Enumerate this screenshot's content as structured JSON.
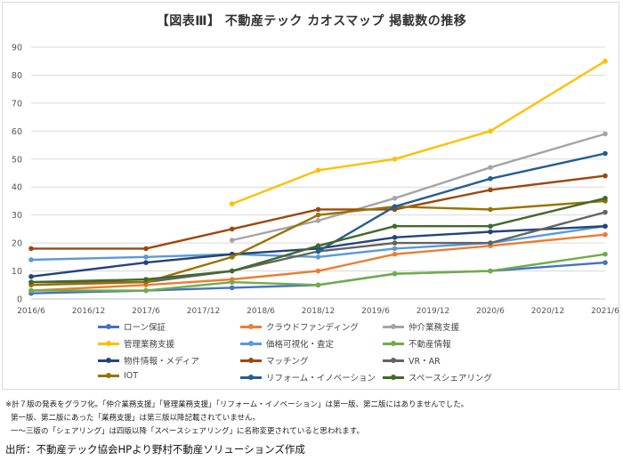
{
  "chart_data": {
    "type": "line",
    "title": "【図表Ⅲ】 不動産テック カオスマップ 掲載数の推移",
    "x": [
      "2016/6",
      "2016/12",
      "2017/6",
      "2017/12",
      "2018/6",
      "2018/12",
      "2019/6",
      "2019/12",
      "2020/6",
      "2020/12",
      "2021/6"
    ],
    "ylim": [
      0,
      90
    ],
    "yticks": [
      0,
      10,
      20,
      30,
      40,
      50,
      60,
      70,
      80,
      90
    ],
    "grid": true,
    "legend_position": "bottom",
    "series": [
      {
        "name": "ローン保証",
        "color": "#4472c4",
        "points": [
          [
            "2016/6",
            2
          ],
          [
            "2017/6",
            3
          ],
          [
            "2018/3",
            4
          ],
          [
            "2018/12",
            5
          ],
          [
            "2019/8",
            9
          ],
          [
            "2020/6",
            10
          ],
          [
            "2021/6",
            13
          ]
        ]
      },
      {
        "name": "クラウドファンディング",
        "color": "#ed7d31",
        "points": [
          [
            "2016/6",
            3
          ],
          [
            "2017/6",
            5
          ],
          [
            "2018/3",
            7
          ],
          [
            "2018/12",
            10
          ],
          [
            "2019/8",
            16
          ],
          [
            "2020/6",
            19
          ],
          [
            "2021/6",
            23
          ]
        ]
      },
      {
        "name": "仲介業務支援",
        "color": "#a5a5a5",
        "points": [
          [
            "2018/3",
            21
          ],
          [
            "2018/12",
            28
          ],
          [
            "2019/8",
            36
          ],
          [
            "2020/6",
            47
          ],
          [
            "2021/6",
            59
          ]
        ]
      },
      {
        "name": "管理業務支援",
        "color": "#ffc000",
        "points": [
          [
            "2018/3",
            34
          ],
          [
            "2018/12",
            46
          ],
          [
            "2019/8",
            50
          ],
          [
            "2020/6",
            60
          ],
          [
            "2021/6",
            85
          ]
        ]
      },
      {
        "name": "価格可視化・査定",
        "color": "#5b9bd5",
        "points": [
          [
            "2016/6",
            14
          ],
          [
            "2017/6",
            15
          ],
          [
            "2018/3",
            16
          ],
          [
            "2018/12",
            15
          ],
          [
            "2019/8",
            18
          ],
          [
            "2020/6",
            20
          ],
          [
            "2021/6",
            26
          ]
        ]
      },
      {
        "name": "不動産情報",
        "color": "#70ad47",
        "points": [
          [
            "2016/6",
            3
          ],
          [
            "2017/6",
            3
          ],
          [
            "2018/3",
            6
          ],
          [
            "2018/12",
            5
          ],
          [
            "2019/8",
            9
          ],
          [
            "2020/6",
            10
          ],
          [
            "2021/6",
            16
          ]
        ]
      },
      {
        "name": "物件情報・メディア",
        "color": "#264478",
        "points": [
          [
            "2016/6",
            8
          ],
          [
            "2017/6",
            13
          ],
          [
            "2018/3",
            16
          ],
          [
            "2018/12",
            18
          ],
          [
            "2019/8",
            22
          ],
          [
            "2020/6",
            24
          ],
          [
            "2021/6",
            26
          ]
        ]
      },
      {
        "name": "マッチング",
        "color": "#9e480e",
        "points": [
          [
            "2016/6",
            18
          ],
          [
            "2017/6",
            18
          ],
          [
            "2018/3",
            25
          ],
          [
            "2018/12",
            32
          ],
          [
            "2019/8",
            32
          ],
          [
            "2020/6",
            39
          ],
          [
            "2021/6",
            44
          ]
        ]
      },
      {
        "name": "VR・AR",
        "color": "#636363",
        "points": [
          [
            "2016/6",
            6
          ],
          [
            "2017/6",
            6
          ],
          [
            "2018/3",
            10
          ],
          [
            "2018/12",
            17
          ],
          [
            "2019/8",
            20
          ],
          [
            "2020/6",
            20
          ],
          [
            "2021/6",
            31
          ]
        ]
      },
      {
        "name": "IOT",
        "color": "#997300",
        "points": [
          [
            "2016/6",
            5
          ],
          [
            "2017/6",
            6
          ],
          [
            "2018/3",
            15
          ],
          [
            "2018/12",
            30
          ],
          [
            "2019/8",
            33
          ],
          [
            "2020/6",
            32
          ],
          [
            "2021/6",
            35
          ]
        ]
      },
      {
        "name": "リフォーム・イノベーション",
        "color": "#255e91",
        "points": [
          [
            "2018/12",
            17
          ],
          [
            "2019/8",
            33
          ],
          [
            "2020/6",
            43
          ],
          [
            "2021/6",
            52
          ]
        ]
      },
      {
        "name": "スペースシェアリング",
        "color": "#43682b",
        "points": [
          [
            "2016/6",
            6
          ],
          [
            "2017/6",
            7
          ],
          [
            "2018/3",
            10
          ],
          [
            "2018/12",
            19
          ],
          [
            "2019/8",
            26
          ],
          [
            "2020/6",
            26
          ],
          [
            "2021/6",
            36
          ]
        ]
      }
    ]
  },
  "notes": [
    "※計７版の発表をグラフ化。「仲介業務支援」「管理業務支援」「リフォーム・イノベーション」は第一版、第二版にはありませんでした。",
    "第一版、第二版にあった「業務支援」は第三版以降記載されていません。",
    "一～三版の「シェアリング」は四版以降「スペースシェアリング」に名称変更されていると思われます。"
  ],
  "source": "出所：不動産テック協会HPより野村不動産ソリューションズ作成"
}
